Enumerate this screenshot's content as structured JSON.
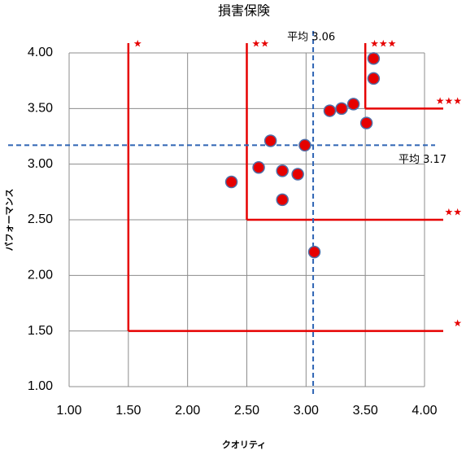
{
  "chart_data": {
    "type": "scatter",
    "title": "損害保険",
    "x_label": "クオリティ",
    "y_label": "パフォーマンス",
    "x": [
      2.37,
      2.6,
      2.7,
      2.8,
      2.8,
      2.93,
      2.99,
      3.07,
      3.2,
      3.3,
      3.4,
      3.51,
      3.57,
      3.57
    ],
    "values": [
      2.84,
      2.97,
      3.21,
      2.94,
      2.68,
      2.91,
      3.17,
      2.21,
      3.48,
      3.5,
      3.54,
      3.37,
      3.95,
      3.77
    ],
    "color": "#e60000",
    "edge_color": "#4f6fa8",
    "xlim": [
      1,
      4
    ],
    "ylim": [
      1,
      4
    ],
    "xticks": [
      {
        "value": 1,
        "label": "1.00"
      },
      {
        "value": 1.5,
        "label": "1.50"
      },
      {
        "value": 2,
        "label": "2.00"
      },
      {
        "value": 2.5,
        "label": "2.50"
      },
      {
        "value": 3,
        "label": "3.00"
      },
      {
        "value": 3.5,
        "label": "3.50"
      },
      {
        "value": 4,
        "label": "4.00"
      }
    ],
    "yticks": [
      {
        "value": 1,
        "label": "1.00"
      },
      {
        "value": 1.5,
        "label": "1.50"
      },
      {
        "value": 2,
        "label": "2.00"
      },
      {
        "value": 2.5,
        "label": "2.50"
      },
      {
        "value": 3,
        "label": "3.00"
      },
      {
        "value": 3.5,
        "label": "3.50"
      },
      {
        "value": 4,
        "label": "4.00"
      }
    ],
    "grid": true,
    "mean_lines": [
      {
        "axis": "x",
        "value": 3.06,
        "label": "平均 3.06"
      },
      {
        "axis": "y",
        "value": 3.17,
        "label": "平均 3.17"
      }
    ],
    "mean_color": "#2e64b4",
    "thresholds": [
      {
        "x": 1.5,
        "y": 1.5,
        "label": "★"
      },
      {
        "x": 2.5,
        "y": 2.5,
        "label": "★★"
      },
      {
        "x": 3.5,
        "y": 3.5,
        "label": "★★★"
      }
    ],
    "threshold_color": "#e60000"
  }
}
